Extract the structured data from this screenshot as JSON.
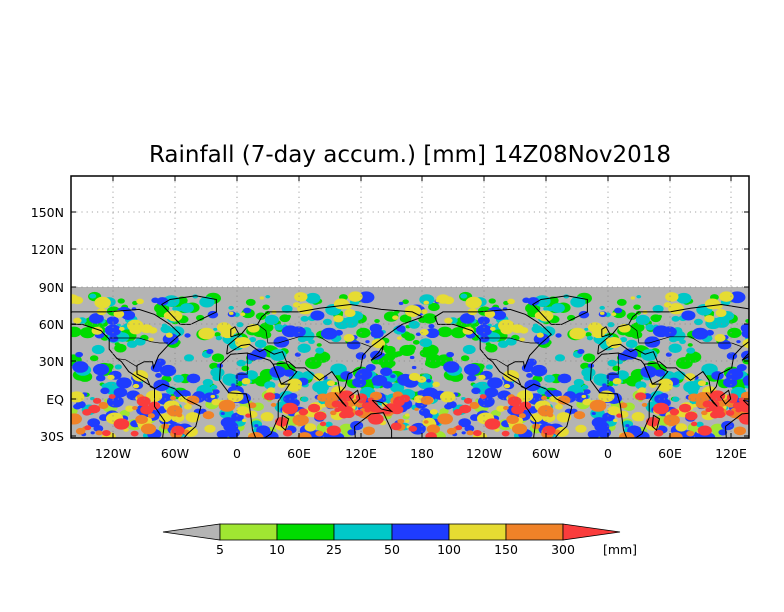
{
  "map": {
    "title": "Rainfall (7-day accum.) [mm] 14Z08Nov2018",
    "lat_labels": [
      "150N",
      "120N",
      "90N",
      "60N",
      "30N",
      "EQ",
      "30S"
    ],
    "lon_labels": [
      "120W",
      "60W",
      "0",
      "60E",
      "120E",
      "180",
      "120W",
      "60W",
      "0",
      "60E",
      "120E"
    ],
    "no_data_color": "#b4b4b4",
    "projection": "cylindrical equidistant, extends beyond 90N with blank area",
    "grid": "dotted"
  },
  "colorbar": {
    "unit_label": "[mm]",
    "thresholds": [
      "5",
      "10",
      "25",
      "50",
      "100",
      "150",
      "300"
    ],
    "colors": [
      "#b4b4b4",
      "#a0e632",
      "#00dc00",
      "#00c8c8",
      "#1e3cff",
      "#e6dc32",
      "#f08228",
      "#fa3c3c"
    ]
  }
}
